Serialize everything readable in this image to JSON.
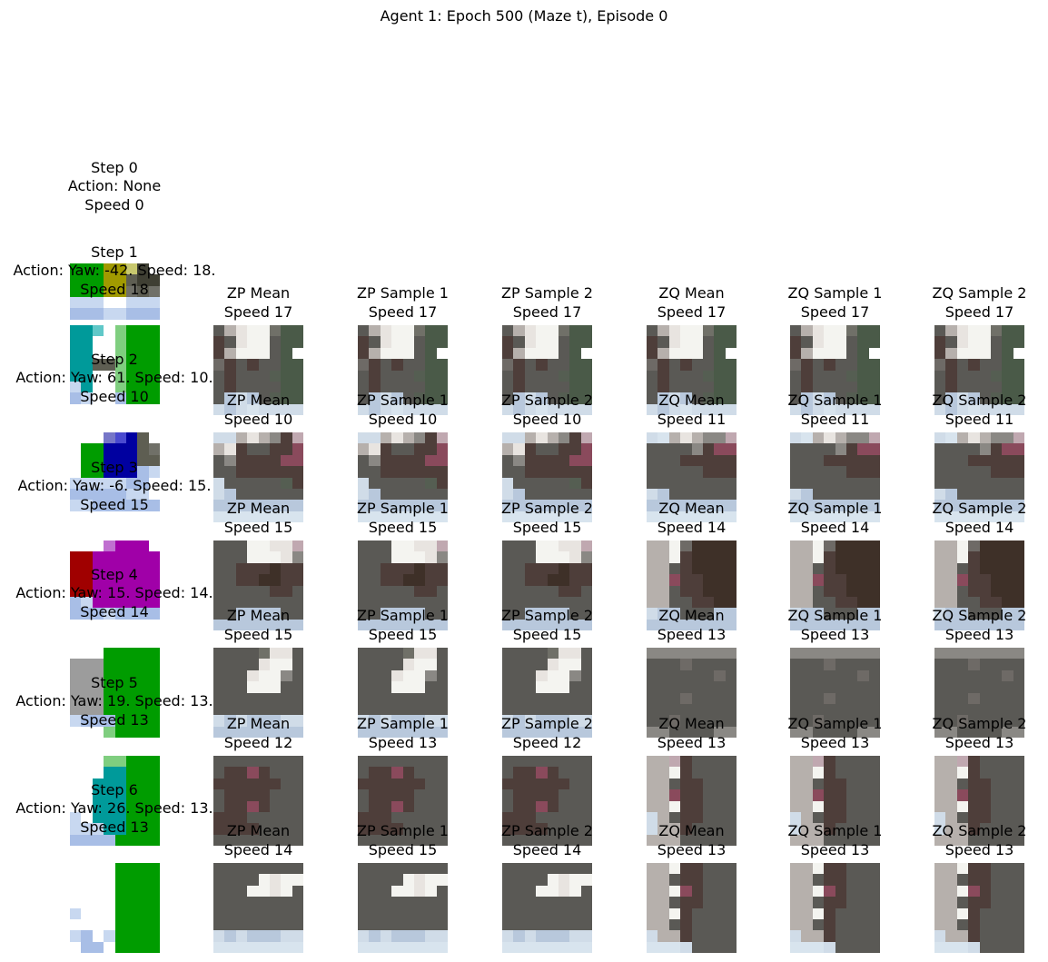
{
  "figure": {
    "title": "Agent 1: Epoch 500 (Maze t), Episode 0"
  },
  "rows": [
    {
      "step_label": "Step 0",
      "action_label": "Action: None",
      "speed_label": "Speed 0",
      "scene": "start-view",
      "predictions": []
    },
    {
      "step_label": "Step 1",
      "action_label": "Action: Yaw: -42. Speed: 18.",
      "speed_label": "Speed 18",
      "scene": "two-pillars",
      "predictions": [
        {
          "title": "ZP Mean",
          "speed_label": "Speed 17",
          "scene": "hall-bright"
        },
        {
          "title": "ZP Sample 1",
          "speed_label": "Speed 17",
          "scene": "hall-bright"
        },
        {
          "title": "ZP Sample 2",
          "speed_label": "Speed 17",
          "scene": "hall-bright"
        },
        {
          "title": "ZQ Mean",
          "speed_label": "Speed 17",
          "scene": "hall-bright"
        },
        {
          "title": "ZQ Sample 1",
          "speed_label": "Speed 17",
          "scene": "hall-bright"
        },
        {
          "title": "ZQ Sample 2",
          "speed_label": "Speed 17",
          "scene": "hall-bright"
        }
      ]
    },
    {
      "step_label": "Step 2",
      "action_label": "Action: Yaw: 61. Speed: 10.",
      "speed_label": "Speed 10",
      "scene": "blue-block",
      "predictions": [
        {
          "title": "ZP Mean",
          "speed_label": "Speed 10",
          "scene": "wall-pink"
        },
        {
          "title": "ZP Sample 1",
          "speed_label": "Speed 10",
          "scene": "wall-pink"
        },
        {
          "title": "ZP Sample 2",
          "speed_label": "Speed 10",
          "scene": "wall-pink"
        },
        {
          "title": "ZQ Mean",
          "speed_label": "Speed 11",
          "scene": "wall-pink-flat"
        },
        {
          "title": "ZQ Sample 1",
          "speed_label": "Speed 11",
          "scene": "wall-pink-flat"
        },
        {
          "title": "ZQ Sample 2",
          "speed_label": "Speed 11",
          "scene": "wall-pink-flat"
        }
      ]
    },
    {
      "step_label": "Step 3",
      "action_label": "Action: Yaw: -6. Speed: 15.",
      "speed_label": "Speed 15",
      "scene": "purple-block",
      "predictions": [
        {
          "title": "ZP Mean",
          "speed_label": "Speed 15",
          "scene": "corridor-warm"
        },
        {
          "title": "ZP Sample 1",
          "speed_label": "Speed 15",
          "scene": "corridor-warm"
        },
        {
          "title": "ZP Sample 2",
          "speed_label": "Speed 15",
          "scene": "corridor-warm"
        },
        {
          "title": "ZQ Mean",
          "speed_label": "Speed 14",
          "scene": "corridor-dark"
        },
        {
          "title": "ZQ Sample 1",
          "speed_label": "Speed 14",
          "scene": "corridor-dark"
        },
        {
          "title": "ZQ Sample 2",
          "speed_label": "Speed 14",
          "scene": "corridor-dark"
        }
      ]
    },
    {
      "step_label": "Step 4",
      "action_label": "Action: Yaw: 15. Speed: 14.",
      "speed_label": "Speed 14",
      "scene": "grey-green",
      "predictions": [
        {
          "title": "ZP Mean",
          "speed_label": "Speed 15",
          "scene": "gap-bright"
        },
        {
          "title": "ZP Sample 1",
          "speed_label": "Speed 15",
          "scene": "gap-bright"
        },
        {
          "title": "ZP Sample 2",
          "speed_label": "Speed 15",
          "scene": "gap-bright"
        },
        {
          "title": "ZQ Mean",
          "speed_label": "Speed 13",
          "scene": "grey-wall"
        },
        {
          "title": "ZQ Sample 1",
          "speed_label": "Speed 13",
          "scene": "grey-wall"
        },
        {
          "title": "ZQ Sample 2",
          "speed_label": "Speed 13",
          "scene": "grey-wall"
        }
      ]
    },
    {
      "step_label": "Step 5",
      "action_label": "Action: Yaw: 19. Speed: 13.",
      "speed_label": "Speed 13",
      "scene": "teal-green",
      "predictions": [
        {
          "title": "ZP Mean",
          "speed_label": "Speed 12",
          "scene": "dark-brown"
        },
        {
          "title": "ZP Sample 1",
          "speed_label": "Speed 13",
          "scene": "dark-brown"
        },
        {
          "title": "ZP Sample 2",
          "speed_label": "Speed 12",
          "scene": "dark-brown"
        },
        {
          "title": "ZQ Mean",
          "speed_label": "Speed 13",
          "scene": "side-pale"
        },
        {
          "title": "ZQ Sample 1",
          "speed_label": "Speed 13",
          "scene": "side-pale"
        },
        {
          "title": "ZQ Sample 2",
          "speed_label": "Speed 13",
          "scene": "side-pale"
        }
      ]
    },
    {
      "step_label": "Step 6",
      "action_label": "Action: Yaw: 26. Speed: 13.",
      "speed_label": "Speed 13",
      "scene": "white-green",
      "predictions": [
        {
          "title": "ZP Mean",
          "speed_label": "Speed 14",
          "scene": "hall-floor"
        },
        {
          "title": "ZP Sample 1",
          "speed_label": "Speed 15",
          "scene": "hall-floor"
        },
        {
          "title": "ZP Sample 2",
          "speed_label": "Speed 14",
          "scene": "hall-floor"
        },
        {
          "title": "ZQ Mean",
          "speed_label": "Speed 13",
          "scene": "side-pale-floor"
        },
        {
          "title": "ZQ Sample 1",
          "speed_label": "Speed 13",
          "scene": "side-pale-floor"
        },
        {
          "title": "ZQ Sample 2",
          "speed_label": "Speed 13",
          "scene": "side-pale-floor"
        }
      ]
    }
  ]
}
